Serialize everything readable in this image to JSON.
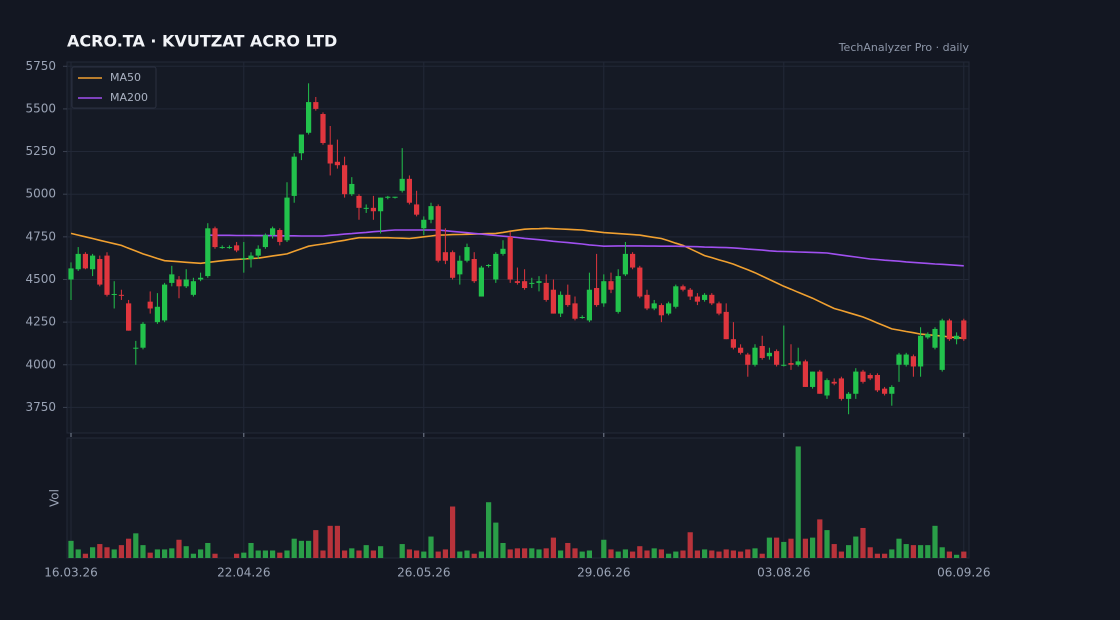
{
  "chart_data": {
    "type": "candlestick",
    "title": "ACRO.TA  ·  KVUTZAT ACRO LTD",
    "subtitle": "TechAnalyzer Pro · daily",
    "x": [
      "16.03.26",
      null,
      null,
      null,
      null,
      null,
      null,
      null,
      null,
      null,
      null,
      null,
      null,
      null,
      null,
      null,
      null,
      null,
      null,
      null,
      null,
      null,
      null,
      null,
      "22.04.26",
      null,
      null,
      null,
      null,
      null,
      null,
      null,
      null,
      null,
      null,
      null,
      null,
      null,
      null,
      null,
      null,
      null,
      null,
      null,
      null,
      null,
      null,
      null,
      null,
      "26.05.26",
      null,
      null,
      null,
      null,
      null,
      null,
      null,
      null,
      null,
      null,
      null,
      null,
      null,
      null,
      null,
      null,
      null,
      null,
      null,
      null,
      null,
      null,
      null,
      null,
      "29.06.26",
      null,
      null,
      null,
      null,
      null,
      null,
      null,
      null,
      null,
      null,
      null,
      null,
      null,
      null,
      null,
      null,
      null,
      null,
      null,
      null,
      null,
      null,
      null,
      null,
      "03.08.26",
      null,
      null,
      null,
      null,
      null,
      null,
      null,
      null,
      null,
      null,
      null,
      null,
      null,
      null,
      null,
      null,
      null,
      null,
      null,
      null,
      null,
      null,
      null,
      null,
      "06.09.26"
    ],
    "open": [
      4500,
      4560,
      4650,
      4560,
      4620,
      4640,
      4410,
      4410,
      4360,
      4100,
      4100,
      4370,
      4250,
      4260,
      4480,
      4500,
      4460,
      4410,
      4500,
      4520,
      4800,
      4690,
      4690,
      4700,
      4620,
      4620,
      4640,
      4690,
      4760,
      4790,
      4730,
      4990,
      5240,
      5360,
      5540,
      5470,
      5290,
      5190,
      5170,
      5000,
      4990,
      4915,
      4920,
      4900,
      4980,
      4980,
      5020,
      5090,
      4940,
      4800,
      4850,
      4930,
      4660,
      4660,
      4530,
      4610,
      4620,
      4400,
      4580,
      4500,
      4650,
      4750,
      4490,
      4490,
      4475,
      4480,
      4480,
      4440,
      4300,
      4410,
      4360,
      4275,
      4260,
      4450,
      4360,
      4490,
      4310,
      4530,
      4650,
      4570,
      4410,
      4330,
      4350,
      4300,
      4340,
      4460,
      4440,
      4400,
      4380,
      4410,
      4360,
      4310,
      4150,
      4100,
      4060,
      4000,
      4110,
      4050,
      4080,
      3995,
      4010,
      4000,
      4020,
      3870,
      3960,
      3820,
      3900,
      3920,
      3800,
      3830,
      3960,
      3940,
      3940,
      3860,
      3830,
      4000,
      4000,
      4050,
      3990,
      4160,
      4100,
      3970,
      4260,
      4150,
      4260
    ],
    "high": [
      4600,
      4690,
      4660,
      4650,
      4640,
      4660,
      4490,
      4440,
      4380,
      4140,
      4250,
      4430,
      4420,
      4480,
      4580,
      4520,
      4560,
      4510,
      4540,
      4830,
      4810,
      4700,
      4700,
      4720,
      4720,
      4660,
      4700,
      4770,
      4810,
      4800,
      5070,
      5240,
      5350,
      5650,
      5570,
      5480,
      5400,
      5320,
      5220,
      5100,
      5000,
      4940,
      4990,
      4980,
      4990,
      4985,
      5270,
      5110,
      5020,
      4870,
      4950,
      4940,
      4800,
      4670,
      4640,
      4710,
      4660,
      4580,
      4590,
      4660,
      4730,
      4780,
      4570,
      4560,
      4510,
      4520,
      4530,
      4500,
      4430,
      4470,
      4400,
      4290,
      4540,
      4650,
      4530,
      4540,
      4560,
      4720,
      4660,
      4580,
      4440,
      4380,
      4360,
      4370,
      4470,
      4470,
      4450,
      4420,
      4420,
      4420,
      4370,
      4360,
      4250,
      4120,
      4070,
      4120,
      4170,
      4100,
      4090,
      4230,
      4120,
      4100,
      4030,
      3960,
      3970,
      3920,
      3920,
      3930,
      3840,
      3980,
      3970,
      3950,
      3950,
      3870,
      3880,
      4070,
      4070,
      4060,
      4220,
      4190,
      4220,
      4270,
      4270,
      4190,
      4270
    ],
    "low": [
      4380,
      4550,
      4560,
      4520,
      4460,
      4400,
      4330,
      4380,
      4200,
      4000,
      4090,
      4300,
      4240,
      4250,
      4460,
      4390,
      4450,
      4400,
      4490,
      4510,
      4680,
      4680,
      4680,
      4660,
      4540,
      4570,
      4620,
      4680,
      4740,
      4700,
      4720,
      4950,
      5200,
      5350,
      5490,
      5290,
      5110,
      5150,
      4980,
      4990,
      4850,
      4890,
      4850,
      4770,
      4970,
      4975,
      5010,
      4940,
      4870,
      4760,
      4830,
      4600,
      4590,
      4500,
      4470,
      4600,
      4480,
      4400,
      4570,
      4480,
      4640,
      4480,
      4470,
      4440,
      4450,
      4430,
      4370,
      4300,
      4280,
      4340,
      4260,
      4270,
      4250,
      4340,
      4340,
      4420,
      4300,
      4520,
      4560,
      4390,
      4320,
      4320,
      4250,
      4290,
      4330,
      4430,
      4380,
      4350,
      4370,
      4350,
      4290,
      4150,
      4090,
      4060,
      3930,
      3990,
      4030,
      4030,
      3990,
      3990,
      3970,
      3990,
      3870,
      3860,
      3830,
      3800,
      3880,
      3790,
      3710,
      3800,
      3890,
      3910,
      3840,
      3820,
      3760,
      3900,
      3990,
      3930,
      3930,
      4150,
      4090,
      3960,
      4140,
      4120,
      4140
    ],
    "close": [
      4565,
      4650,
      4565,
      4640,
      4470,
      4410,
      4415,
      4405,
      4200,
      4100,
      4240,
      4330,
      4340,
      4470,
      4530,
      4460,
      4500,
      4490,
      4510,
      4800,
      4690,
      4690,
      4690,
      4670,
      4625,
      4640,
      4680,
      4760,
      4800,
      4720,
      4980,
      5220,
      5350,
      5540,
      5500,
      5300,
      5180,
      5170,
      5000,
      5060,
      4920,
      4920,
      4900,
      4980,
      4985,
      4985,
      5090,
      4950,
      4880,
      4850,
      4930,
      4610,
      4610,
      4510,
      4610,
      4690,
      4490,
      4570,
      4585,
      4650,
      4680,
      4500,
      4480,
      4450,
      4480,
      4490,
      4380,
      4300,
      4410,
      4350,
      4270,
      4280,
      4440,
      4350,
      4490,
      4440,
      4520,
      4650,
      4570,
      4400,
      4330,
      4360,
      4290,
      4360,
      4460,
      4440,
      4400,
      4370,
      4410,
      4360,
      4300,
      4150,
      4100,
      4070,
      4000,
      4100,
      4040,
      4070,
      4000,
      4000,
      4000,
      4020,
      3870,
      3960,
      3830,
      3910,
      3890,
      3800,
      3830,
      3960,
      3900,
      3920,
      3850,
      3830,
      3870,
      4060,
      4060,
      3990,
      4170,
      4180,
      4210,
      4260,
      4150,
      4170,
      4150
    ],
    "up_color": "#22c24c",
    "down_color": "#e0363e",
    "ylim": [
      3600,
      5775
    ],
    "yticks": [
      3750,
      4000,
      4250,
      4500,
      4750,
      5000,
      5250,
      5500,
      5750
    ],
    "grid": true,
    "legend": "upper left",
    "series": [
      {
        "name": "MA50",
        "color": "#f0a030",
        "values": [
          4770,
          4760,
          4750,
          4740,
          4730,
          4720,
          4710,
          4700,
          4683,
          4667,
          4650,
          4637,
          4623,
          4610,
          4607,
          4604,
          4601,
          4598,
          4595,
          4600,
          4605,
          4610,
          4615,
          4618,
          4620,
          4623,
          4625,
          4631,
          4638,
          4644,
          4650,
          4665,
          4680,
          4695,
          4702,
          4708,
          4715,
          4723,
          4730,
          4738,
          4745,
          4745,
          4745,
          4745,
          4745,
          4743,
          4742,
          4740,
          4745,
          4750,
          4755,
          4760,
          4761,
          4763,
          4764,
          4765,
          4766,
          4768,
          4769,
          4770,
          4776,
          4783,
          4789,
          4795,
          4797,
          4798,
          4800,
          4798,
          4796,
          4794,
          4792,
          4790,
          4785,
          4780,
          4775,
          4772,
          4769,
          4766,
          4763,
          4760,
          4753,
          4747,
          4740,
          4727,
          4713,
          4700,
          4680,
          4660,
          4640,
          4628,
          4615,
          4603,
          4590,
          4573,
          4557,
          4540,
          4520,
          4500,
          4480,
          4460,
          4443,
          4425,
          4408,
          4390,
          4370,
          4350,
          4330,
          4318,
          4305,
          4293,
          4280,
          4263,
          4245,
          4228,
          4210,
          4203,
          4195,
          4188,
          4180,
          4176,
          4172,
          4168,
          4163,
          4159,
          4155
        ]
      },
      {
        "name": "MA200",
        "color": "#a050f0",
        "values": [
          null,
          null,
          null,
          null,
          null,
          null,
          null,
          null,
          null,
          null,
          null,
          null,
          null,
          null,
          null,
          null,
          null,
          null,
          null,
          4760,
          4759,
          4759,
          4759,
          4758,
          4758,
          4758,
          4757,
          4757,
          4757,
          4756,
          4756,
          4756,
          4755,
          4755,
          4755,
          4755,
          4759,
          4762,
          4766,
          4769,
          4773,
          4776,
          4780,
          4783,
          4787,
          4790,
          4790,
          4790,
          4790,
          4790,
          4790,
          4790,
          4786,
          4782,
          4778,
          4774,
          4770,
          4766,
          4762,
          4758,
          4754,
          4750,
          4746,
          4741,
          4737,
          4733,
          4729,
          4724,
          4720,
          4716,
          4712,
          4708,
          4703,
          4699,
          4695,
          4696,
          4697,
          4697,
          4697,
          4697,
          4696,
          4696,
          4695,
          4695,
          4695,
          4694,
          4693,
          4692,
          4690,
          4689,
          4688,
          4687,
          4685,
          4682,
          4678,
          4675,
          4672,
          4668,
          4665,
          4664,
          4663,
          4661,
          4660,
          4659,
          4657,
          4655,
          4649,
          4643,
          4637,
          4632,
          4626,
          4620,
          4617,
          4613,
          4610,
          4607,
          4603,
          4600,
          4597,
          4594,
          4591,
          4589,
          4586,
          4583,
          4580
        ]
      }
    ],
    "volume": {
      "label": "Vol",
      "ylim": [
        0,
        110
      ],
      "up_color": "#2a9e48",
      "down_color": "#b8333b",
      "values": [
        16,
        8,
        4,
        10,
        13,
        10,
        8,
        12,
        18,
        23,
        12,
        5,
        8,
        8,
        9,
        17,
        11,
        4,
        8,
        14,
        4,
        0,
        0,
        4,
        5,
        14,
        7,
        7,
        7,
        5,
        7,
        18,
        16,
        16,
        26,
        7,
        30,
        30,
        7,
        9,
        7,
        12,
        7,
        11,
        0,
        0,
        13,
        8,
        7,
        6,
        20,
        6,
        8,
        48,
        6,
        7,
        4,
        6,
        52,
        33,
        14,
        8,
        9,
        9,
        9,
        8,
        9,
        19,
        7,
        14,
        9,
        6,
        7,
        0,
        17,
        8,
        6,
        8,
        6,
        11,
        7,
        9,
        8,
        4,
        6,
        7,
        24,
        7,
        8,
        7,
        6,
        8,
        7,
        6,
        8,
        9,
        4,
        19,
        19,
        15,
        18,
        104,
        18,
        19,
        36,
        26,
        13,
        6,
        12,
        20,
        28,
        10,
        4,
        4,
        8,
        18,
        13,
        12,
        12,
        12,
        30,
        10,
        6,
        3,
        6
      ]
    }
  }
}
